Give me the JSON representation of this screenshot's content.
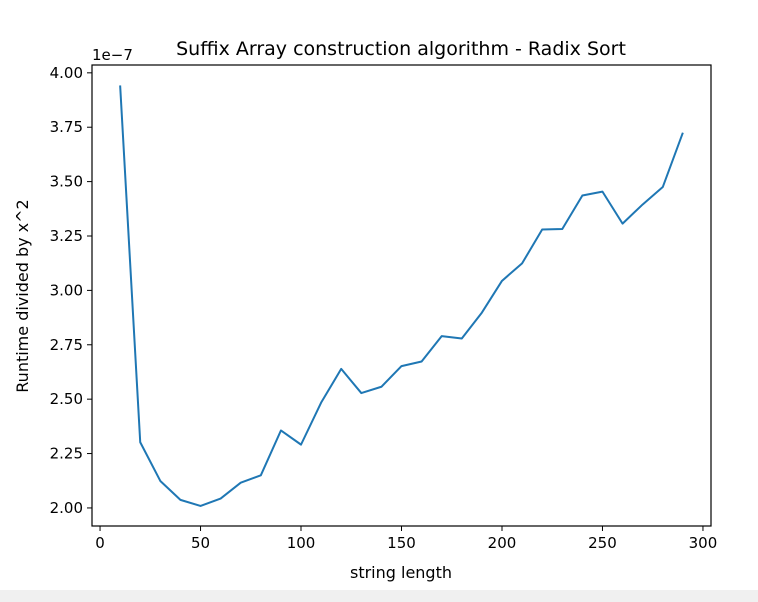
{
  "chart_data": {
    "type": "line",
    "title": "Suffix Array construction algorithm - Radix Sort",
    "xlabel": "string length",
    "ylabel": "Runtime divided by x^2",
    "y_offset_text": "1e−7",
    "xlim": [
      -4.0,
      304.0
    ],
    "ylim": [
      1.917,
      4.036
    ],
    "x_ticks": [
      0,
      50,
      100,
      150,
      200,
      250,
      300
    ],
    "x_tick_labels": [
      "0",
      "50",
      "100",
      "150",
      "200",
      "250",
      "300"
    ],
    "y_ticks": [
      2.0,
      2.25,
      2.5,
      2.75,
      3.0,
      3.25,
      3.5,
      3.75,
      4.0
    ],
    "y_tick_labels": [
      "2.00",
      "2.25",
      "2.50",
      "2.75",
      "3.00",
      "3.25",
      "3.50",
      "3.75",
      "4.00"
    ],
    "grid": false,
    "line_color": "#1f77b4",
    "series": [
      {
        "x": [
          10,
          20,
          30,
          40,
          50,
          60,
          70,
          80,
          90,
          100,
          110,
          120,
          130,
          140,
          150,
          160,
          170,
          180,
          190,
          200,
          210,
          220,
          230,
          240,
          250,
          260,
          270,
          280,
          290
        ],
        "values": [
          3.942,
          2.302,
          2.124,
          2.037,
          2.009,
          2.043,
          2.116,
          2.15,
          2.356,
          2.291,
          2.484,
          2.639,
          2.528,
          2.557,
          2.652,
          2.673,
          2.79,
          2.779,
          2.898,
          3.044,
          3.124,
          3.28,
          3.282,
          3.436,
          3.454,
          3.307,
          3.395,
          3.475,
          3.725
        ]
      }
    ]
  }
}
